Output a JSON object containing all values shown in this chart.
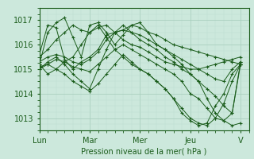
{
  "xlabel": "Pression niveau de la mer( hPa )",
  "bg_color": "#cce8dc",
  "plot_bg_color": "#cce8dc",
  "grid_major_color": "#aacfbf",
  "grid_minor_color": "#bbddd0",
  "line_color": "#1a5c1a",
  "marker": "+",
  "ylim": [
    1012.5,
    1017.5
  ],
  "yticks": [
    1013,
    1014,
    1015,
    1016,
    1017
  ],
  "xtick_labels": [
    "Lun",
    "Mar",
    "Mer",
    "Jeu",
    "V"
  ],
  "xtick_positions": [
    0,
    24,
    48,
    72,
    96
  ],
  "xlim": [
    0,
    100
  ],
  "lines": [
    {
      "x": [
        0,
        4,
        8,
        12,
        16,
        20,
        24,
        28,
        32,
        36,
        40,
        44,
        48,
        52,
        56,
        60,
        64,
        68,
        72,
        76,
        80,
        84,
        88,
        92,
        96
      ],
      "y": [
        1015.5,
        1015.8,
        1016.2,
        1016.5,
        1016.8,
        1016.6,
        1016.5,
        1016.7,
        1016.8,
        1016.5,
        1016.6,
        1016.8,
        1016.7,
        1016.5,
        1016.4,
        1016.2,
        1016.0,
        1015.9,
        1015.8,
        1015.7,
        1015.6,
        1015.5,
        1015.4,
        1015.3,
        1015.2
      ]
    },
    {
      "x": [
        0,
        4,
        8,
        12,
        16,
        20,
        24,
        28,
        32,
        36,
        40,
        44,
        48,
        52,
        56,
        60,
        64,
        68,
        72,
        76,
        80,
        84,
        88,
        92,
        96
      ],
      "y": [
        1015.2,
        1016.5,
        1016.9,
        1017.1,
        1016.3,
        1015.5,
        1016.8,
        1016.9,
        1016.5,
        1016.0,
        1016.4,
        1016.8,
        1016.9,
        1016.5,
        1016.0,
        1015.8,
        1015.5,
        1015.2,
        1014.8,
        1014.5,
        1013.8,
        1013.2,
        1012.9,
        1012.7,
        1012.8
      ]
    },
    {
      "x": [
        0,
        4,
        8,
        12,
        16,
        20,
        24,
        28,
        32,
        36,
        40,
        44,
        48,
        52,
        56,
        60,
        64,
        68,
        72,
        76,
        80,
        84,
        88,
        92,
        96
      ],
      "y": [
        1015.1,
        1015.2,
        1015.4,
        1015.3,
        1015.1,
        1015.0,
        1014.9,
        1015.2,
        1015.5,
        1015.8,
        1016.0,
        1015.8,
        1015.6,
        1015.4,
        1015.2,
        1015.0,
        1014.8,
        1014.5,
        1014.0,
        1013.8,
        1013.4,
        1013.0,
        1012.9,
        1013.2,
        1015.3
      ]
    },
    {
      "x": [
        0,
        4,
        8,
        12,
        16,
        20,
        24,
        28,
        32,
        36,
        40,
        44,
        48,
        52,
        56,
        60,
        64,
        68,
        72,
        76,
        80,
        84,
        88,
        92,
        96
      ],
      "y": [
        1015.3,
        1015.5,
        1015.6,
        1015.5,
        1015.3,
        1015.2,
        1015.4,
        1015.7,
        1016.2,
        1016.5,
        1016.2,
        1016.0,
        1015.9,
        1015.7,
        1015.5,
        1015.3,
        1015.2,
        1015.1,
        1015.0,
        1015.0,
        1015.1,
        1015.2,
        1015.3,
        1015.4,
        1015.5
      ]
    },
    {
      "x": [
        0,
        4,
        8,
        12,
        16,
        20,
        24,
        28,
        32,
        36,
        40,
        44,
        48,
        52,
        56,
        60,
        64,
        68,
        72,
        76,
        80,
        84,
        88,
        92,
        96
      ],
      "y": [
        1015.6,
        1016.8,
        1016.7,
        1015.4,
        1015.0,
        1015.3,
        1015.5,
        1015.8,
        1016.4,
        1016.5,
        1016.6,
        1016.5,
        1016.4,
        1016.2,
        1016.0,
        1015.8,
        1015.6,
        1015.4,
        1015.2,
        1015.0,
        1014.8,
        1014.6,
        1014.5,
        1015.0,
        1015.3
      ]
    },
    {
      "x": [
        0,
        4,
        8,
        12,
        16,
        20,
        24,
        28,
        32,
        36,
        40,
        44,
        48,
        52,
        56,
        60,
        64,
        68,
        72,
        76,
        80,
        84,
        88,
        92,
        96
      ],
      "y": [
        1015.2,
        1014.8,
        1015.0,
        1015.3,
        1015.5,
        1016.0,
        1016.5,
        1016.8,
        1016.3,
        1015.8,
        1015.5,
        1015.2,
        1015.0,
        1014.8,
        1014.5,
        1014.2,
        1013.8,
        1013.2,
        1012.9,
        1012.7,
        1012.8,
        1013.5,
        1014.0,
        1014.8,
        1015.2
      ]
    },
    {
      "x": [
        0,
        4,
        8,
        12,
        16,
        20,
        24,
        28,
        32,
        36,
        40,
        44,
        48,
        52,
        56,
        60,
        64,
        68,
        72,
        76,
        80,
        84,
        88,
        92,
        96
      ],
      "y": [
        1015.0,
        1015.2,
        1015.0,
        1014.8,
        1014.5,
        1014.3,
        1014.1,
        1014.4,
        1014.8,
        1015.2,
        1015.6,
        1015.3,
        1015.0,
        1014.8,
        1014.5,
        1014.2,
        1013.8,
        1013.4,
        1013.0,
        1012.8,
        1012.7,
        1013.0,
        1013.6,
        1014.5,
        1015.2
      ]
    },
    {
      "x": [
        0,
        4,
        8,
        12,
        16,
        20,
        24,
        28,
        32,
        36,
        40,
        44,
        48,
        52,
        56,
        60,
        64,
        68,
        72,
        76,
        80,
        84,
        88,
        92,
        96
      ],
      "y": [
        1015.0,
        1015.3,
        1015.5,
        1015.2,
        1014.8,
        1014.5,
        1014.2,
        1015.0,
        1015.8,
        1016.5,
        1016.8,
        1016.5,
        1016.2,
        1016.0,
        1015.8,
        1015.5,
        1015.3,
        1015.0,
        1014.8,
        1014.5,
        1014.2,
        1013.9,
        1013.5,
        1013.2,
        1015.2
      ]
    }
  ]
}
